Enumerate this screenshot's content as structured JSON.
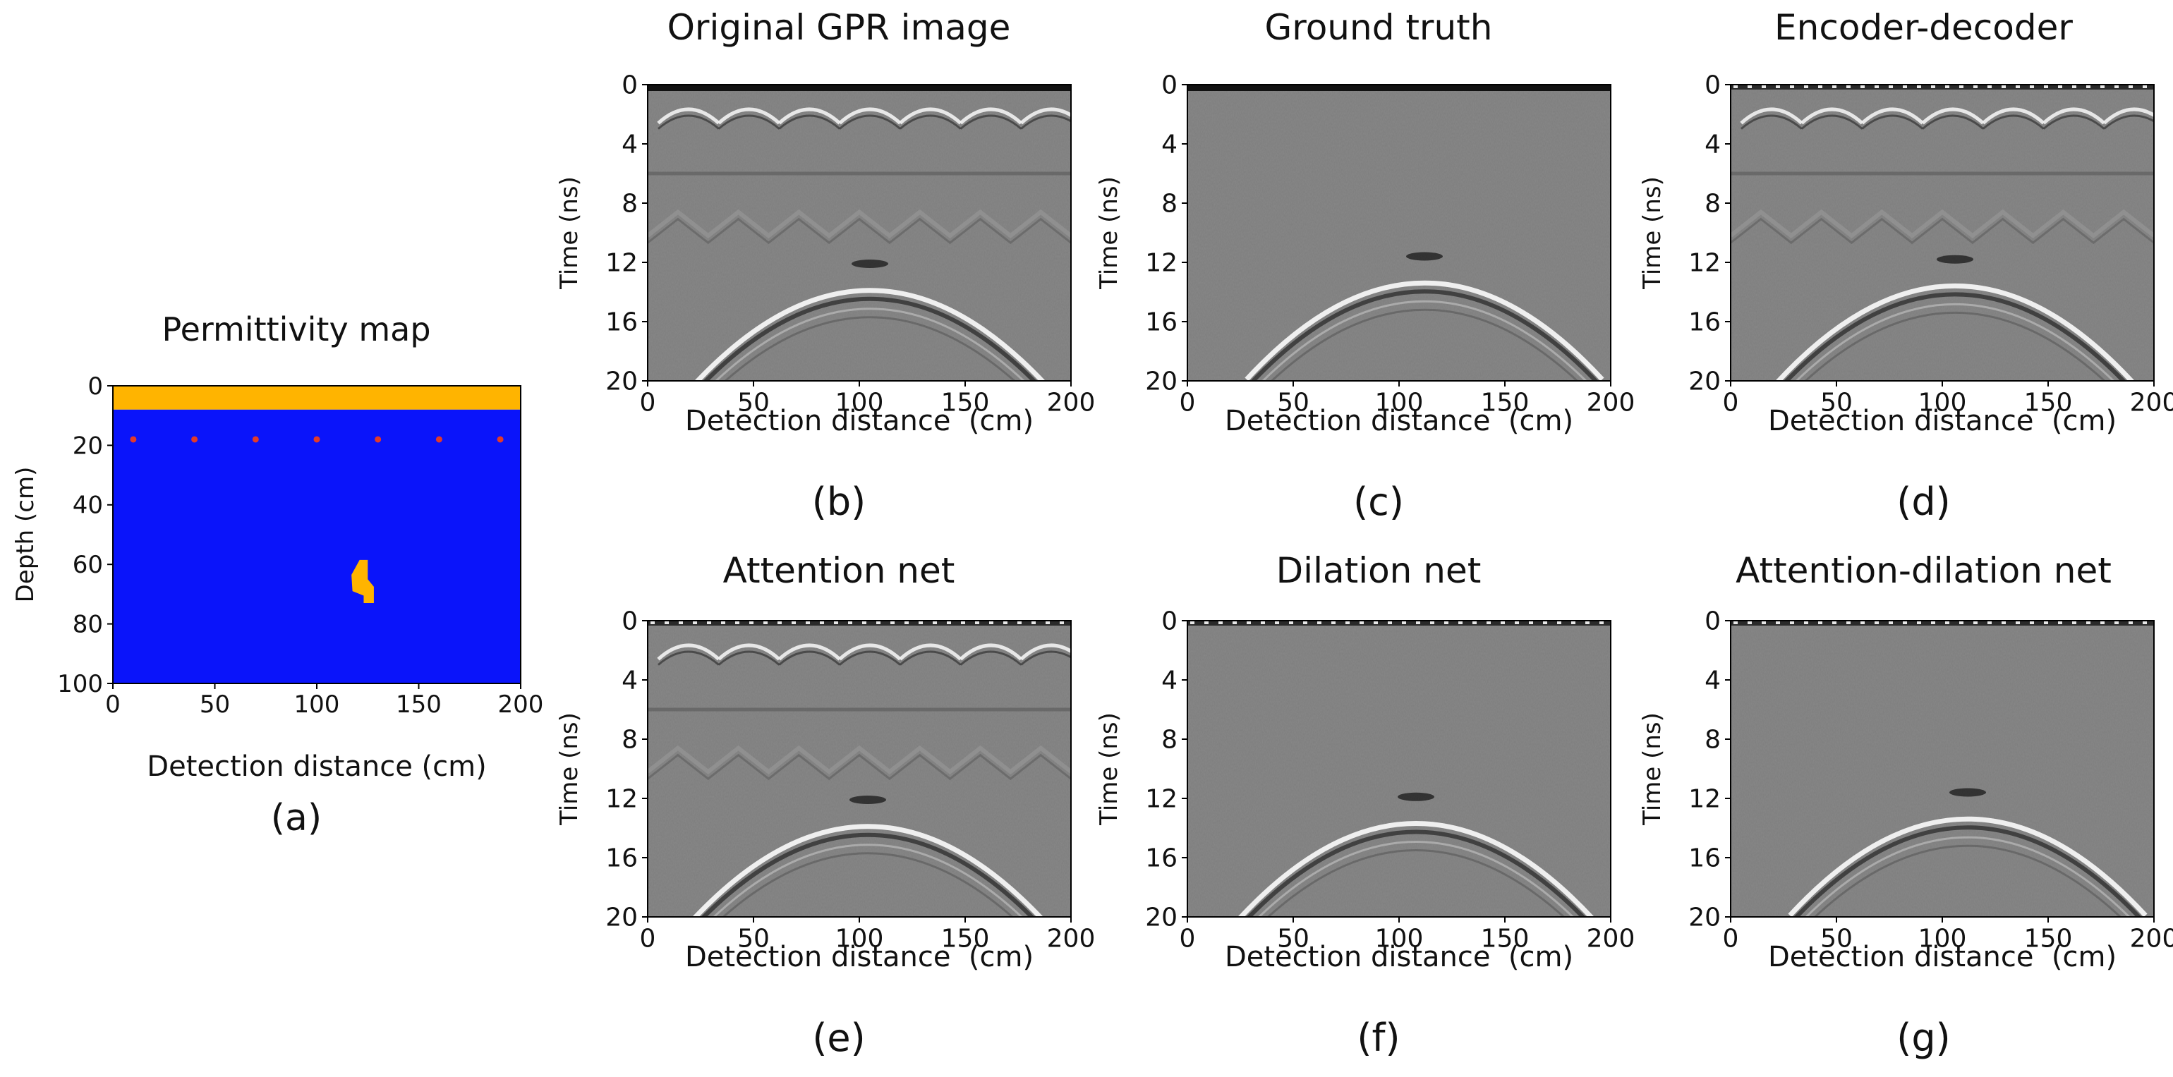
{
  "chart_data": [
    {
      "id": "a",
      "type": "heatmap",
      "title": "Permittivity map",
      "panel_label": "(a)",
      "xlabel": "Detection distance (cm)",
      "ylabel": "Depth (cm)",
      "xlim": [
        0,
        200
      ],
      "ylim": [
        0,
        100
      ],
      "y_inverted": true,
      "xticks": [
        0,
        50,
        100,
        150,
        200
      ],
      "yticks": [
        0,
        20,
        40,
        60,
        80,
        100
      ],
      "layers": [
        {
          "name": "surface layer",
          "depth_from": 0,
          "depth_to": 8,
          "color": "#FFB400"
        },
        {
          "name": "background medium",
          "depth_from": 8,
          "depth_to": 100,
          "color": "#0A14FA"
        }
      ],
      "antenna_points": {
        "depth": 18,
        "x": [
          10,
          40,
          70,
          100,
          130,
          160,
          190
        ],
        "color": "#E23A2A"
      },
      "target": {
        "center_x": 122,
        "center_depth": 66,
        "radius": 5,
        "color": "#FFB400"
      }
    },
    {
      "id": "b",
      "type": "heatmap",
      "title": "Original GPR image",
      "panel_label": "(b)",
      "xlabel": "Detection distance  (cm)",
      "ylabel": "Time (ns)",
      "xlim": [
        0,
        200
      ],
      "ylim": [
        0,
        20
      ],
      "y_inverted": true,
      "xticks": [
        0,
        50,
        100,
        150,
        200
      ],
      "yticks": [
        0,
        4,
        8,
        12,
        16,
        20
      ],
      "hyperbola_apex": {
        "x": 105,
        "t": 12
      },
      "direct_wave_arcs": true,
      "multiple_reflections": true,
      "top_band": "dark"
    },
    {
      "id": "c",
      "type": "heatmap",
      "title": "Ground truth",
      "panel_label": "(c)",
      "xlabel": "Detection distance  (cm)",
      "ylabel": "Time (ns)",
      "xlim": [
        0,
        200
      ],
      "ylim": [
        0,
        20
      ],
      "y_inverted": true,
      "xticks": [
        0,
        50,
        100,
        150,
        200
      ],
      "yticks": [
        0,
        4,
        8,
        12,
        16,
        20
      ],
      "hyperbola_apex": {
        "x": 112,
        "t": 11.5
      },
      "direct_wave_arcs": false,
      "multiple_reflections": false,
      "top_band": "dark"
    },
    {
      "id": "d",
      "type": "heatmap",
      "title": "Encoder-decoder",
      "panel_label": "(d)",
      "xlabel": "Detection distance  (cm)",
      "ylabel": "Time (ns)",
      "xlim": [
        0,
        200
      ],
      "ylim": [
        0,
        20
      ],
      "y_inverted": true,
      "xticks": [
        0,
        50,
        100,
        150,
        200
      ],
      "yticks": [
        0,
        4,
        8,
        12,
        16,
        20
      ],
      "hyperbola_apex": {
        "x": 106,
        "t": 11.7
      },
      "direct_wave_arcs": true,
      "multiple_reflections": true,
      "top_band": "noisy"
    },
    {
      "id": "e",
      "type": "heatmap",
      "title": "Attention net",
      "panel_label": "(e)",
      "xlabel": "Detection distance  (cm)",
      "ylabel": "Time (ns)",
      "xlim": [
        0,
        200
      ],
      "ylim": [
        0,
        20
      ],
      "y_inverted": true,
      "xticks": [
        0,
        50,
        100,
        150,
        200
      ],
      "yticks": [
        0,
        4,
        8,
        12,
        16,
        20
      ],
      "hyperbola_apex": {
        "x": 104,
        "t": 12
      },
      "direct_wave_arcs": true,
      "multiple_reflections": true,
      "top_band": "noisy"
    },
    {
      "id": "f",
      "type": "heatmap",
      "title": "Dilation net",
      "panel_label": "(f)",
      "xlabel": "Detection distance  (cm)",
      "ylabel": "Time (ns)",
      "xlim": [
        0,
        200
      ],
      "ylim": [
        0,
        20
      ],
      "y_inverted": true,
      "xticks": [
        0,
        50,
        100,
        150,
        200
      ],
      "yticks": [
        0,
        4,
        8,
        12,
        16,
        20
      ],
      "hyperbola_apex": {
        "x": 108,
        "t": 11.8
      },
      "direct_wave_arcs": false,
      "multiple_reflections": false,
      "top_band": "noisy"
    },
    {
      "id": "g",
      "type": "heatmap",
      "title": "Attention-dilation net",
      "panel_label": "(g)",
      "xlabel": "Detection distance  (cm)",
      "ylabel": "Time (ns)",
      "xlim": [
        0,
        200
      ],
      "ylim": [
        0,
        20
      ],
      "y_inverted": true,
      "xticks": [
        0,
        50,
        100,
        150,
        200
      ],
      "yticks": [
        0,
        4,
        8,
        12,
        16,
        20
      ],
      "hyperbola_apex": {
        "x": 112,
        "t": 11.5
      },
      "direct_wave_arcs": false,
      "multiple_reflections": false,
      "top_band": "noisy"
    }
  ]
}
